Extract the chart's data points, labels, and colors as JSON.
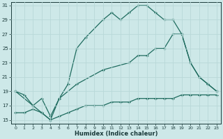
{
  "xlabel": "Humidex (Indice chaleur)",
  "bg_color": "#cde8e8",
  "line_color": "#1e6b5e",
  "grid_color": "#b8d8d8",
  "xlim": [
    -0.5,
    23.5
  ],
  "ylim": [
    14.5,
    31.5
  ],
  "xticks": [
    0,
    1,
    2,
    3,
    4,
    5,
    6,
    7,
    8,
    9,
    10,
    11,
    12,
    13,
    14,
    15,
    16,
    17,
    18,
    19,
    20,
    21,
    22,
    23
  ],
  "yticks": [
    15,
    17,
    19,
    21,
    23,
    25,
    27,
    29,
    31
  ],
  "curve1_x": [
    0,
    1,
    2,
    3,
    4,
    5,
    6,
    7,
    8,
    10,
    11,
    12,
    13,
    14,
    15,
    16,
    17,
    18,
    19,
    20,
    21,
    22,
    23
  ],
  "curve1_y": [
    19,
    18.5,
    17,
    16,
    15,
    18,
    20,
    25,
    26.5,
    29,
    30,
    29,
    30,
    31,
    31,
    30,
    29,
    29,
    27,
    23,
    21,
    20,
    19
  ],
  "curve2_x": [
    0,
    2,
    3,
    4,
    5,
    7,
    10,
    13,
    14,
    15,
    16,
    17,
    18,
    19,
    20,
    21,
    22,
    23
  ],
  "curve2_y": [
    19,
    17,
    18,
    15.5,
    18,
    20,
    22,
    23,
    24,
    24,
    25,
    25,
    27,
    27,
    23,
    21,
    20,
    19
  ],
  "curve3_x": [
    0,
    1,
    2,
    3,
    4,
    5,
    6,
    7,
    8,
    9,
    10,
    11,
    12,
    13,
    14,
    15,
    16,
    17,
    18,
    19,
    20,
    21,
    22,
    23
  ],
  "curve3_y": [
    16,
    16,
    16.5,
    16,
    15,
    15.5,
    16,
    16.5,
    17,
    17,
    17,
    17.5,
    17.5,
    17.5,
    18,
    18,
    18,
    18,
    18,
    18.5,
    18.5,
    18.5,
    18.5,
    18.5
  ]
}
